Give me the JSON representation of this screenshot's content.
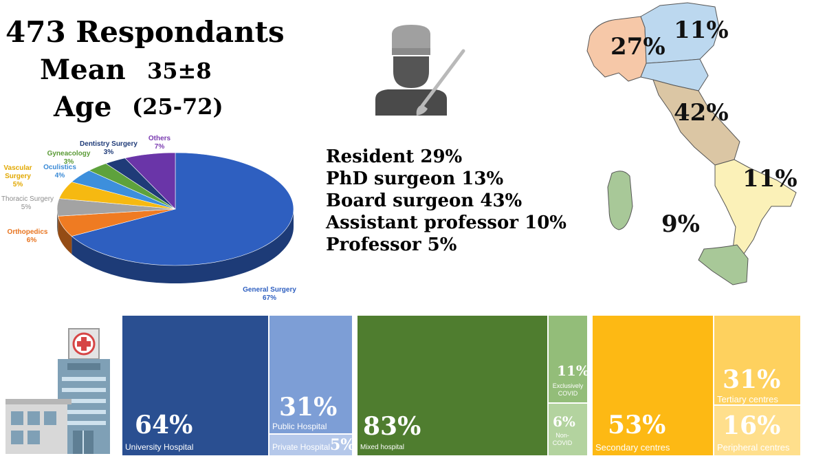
{
  "header": {
    "respondents": "473 Respondants",
    "mean_label": "Mean",
    "mean_value": "35±8",
    "age_label": "Age",
    "age_range": "(25-72)"
  },
  "roles": [
    "Resident 29%",
    "PhD surgeon 13%",
    "Board surgeon 43%",
    "Assistant professor 10%",
    "Professor 5%"
  ],
  "map_labels": {
    "north_west": "27%",
    "north_east": "11%",
    "centre": "42%",
    "south": "11%",
    "islands": "9%"
  },
  "chart_data": [
    {
      "type": "pie",
      "slices": [
        {
          "label": "General Surgery",
          "value": 67,
          "value_label": "67%",
          "color": "#2e5fc0",
          "text_color": "#2e5fc0"
        },
        {
          "label": "Orthopedics",
          "value": 6,
          "value_label": "6%",
          "color": "#ef7b22",
          "text_color": "#e8741f"
        },
        {
          "label": "Thoracic Surgery",
          "value": 5,
          "value_label": "5%",
          "color": "#a3a3a3",
          "text_color": "#8c8c8c"
        },
        {
          "label": "Vascular Surgery",
          "value": 5,
          "value_label": "5%",
          "color": "#f6b911",
          "text_color": "#e2a800"
        },
        {
          "label": "Oculistics",
          "value": 4,
          "value_label": "4%",
          "color": "#3d8fdc",
          "text_color": "#3a8ad6"
        },
        {
          "label": "Gyneacology",
          "value": 3,
          "value_label": "3%",
          "color": "#5ea23c",
          "text_color": "#5a9a35"
        },
        {
          "label": "Dentistry Surgery",
          "value": 3,
          "value_label": "3%",
          "color": "#1f3b78",
          "text_color": "#1f3b78"
        },
        {
          "label": "Others",
          "value": 7,
          "value_label": "7%",
          "color": "#6a35a8",
          "text_color": "#7a3bb0"
        }
      ]
    },
    {
      "type": "table",
      "groups": [
        {
          "items": [
            {
              "label": "University Hospital",
              "value": 64,
              "value_label": "64%",
              "color": "#2a4f91"
            },
            {
              "label": "Public Hospital",
              "value": 31,
              "value_label": "31%",
              "color": "#7d9ed6"
            },
            {
              "label": "Private Hospital",
              "value": 5,
              "value_label": "5%",
              "color": "#b5c8ea"
            }
          ]
        },
        {
          "items": [
            {
              "label": "Mixed hospital",
              "value": 83,
              "value_label": "83%",
              "color": "#4f7d2f"
            },
            {
              "label": "Exclusively COVID",
              "value": 11,
              "value_label": "11%",
              "color": "#93bd79"
            },
            {
              "label": "Non-COVID",
              "value": 6,
              "value_label": "6%",
              "color": "#b3d39f"
            }
          ]
        },
        {
          "items": [
            {
              "label": "Secondary centres",
              "value": 53,
              "value_label": "53%",
              "color": "#fdb914"
            },
            {
              "label": "Tertiary centres",
              "value": 31,
              "value_label": "31%",
              "color": "#fed15e"
            },
            {
              "label": "Peripheral centres",
              "value": 16,
              "value_label": "16%",
              "color": "#ffdf8c"
            }
          ]
        }
      ]
    }
  ]
}
